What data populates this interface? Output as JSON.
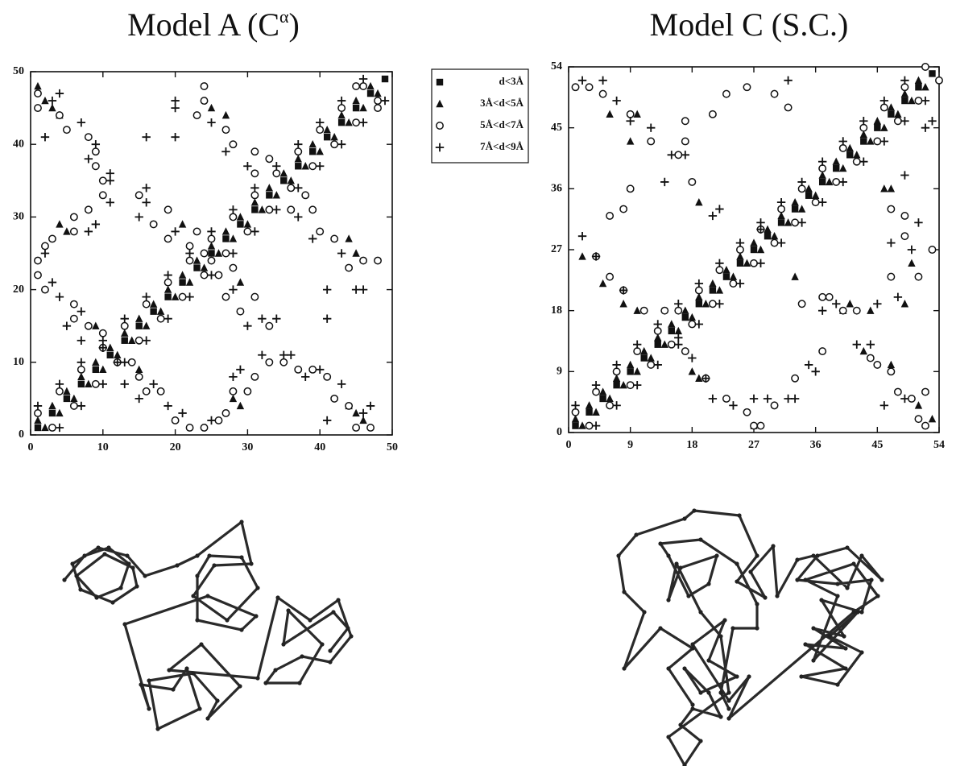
{
  "chart_data": [
    {
      "type": "scatter",
      "title": "Model A (C",
      "title_superscript": "α",
      "title_suffix": ")",
      "xlim": [
        0,
        50
      ],
      "ylim": [
        0,
        50
      ],
      "xticks": [
        0,
        10,
        20,
        30,
        40,
        50
      ],
      "yticks": [
        0,
        10,
        20,
        30,
        40,
        50
      ],
      "legend": "outside right",
      "series": [
        {
          "name": "d<3Å",
          "marker": "square",
          "color": "#111111",
          "x": [
            1,
            3,
            5,
            7,
            9,
            11,
            13,
            15,
            17,
            19,
            21,
            23,
            25,
            27,
            29,
            31,
            33,
            35,
            37,
            39,
            41,
            43,
            45,
            47,
            49
          ],
          "y": [
            1,
            3,
            5,
            7,
            9,
            11,
            13,
            15,
            17,
            19,
            21,
            23,
            25,
            27,
            29,
            31,
            33,
            35,
            37,
            39,
            41,
            43,
            45,
            47,
            49
          ]
        },
        {
          "name": "3Å<d<5Å",
          "marker": "triangle",
          "color": "#111111",
          "x": [
            1,
            3,
            5,
            7,
            9,
            11,
            13,
            15,
            17,
            19,
            21,
            23,
            25,
            27,
            29,
            31,
            33,
            35,
            37,
            39,
            41,
            43,
            45,
            47,
            2,
            4,
            6,
            8,
            10,
            12,
            14,
            16,
            18,
            20,
            22,
            24,
            26,
            28,
            30,
            32,
            34,
            36,
            38,
            40,
            42,
            44,
            46,
            48,
            15,
            28,
            29,
            44,
            45,
            46,
            45,
            44,
            29,
            9,
            5,
            4,
            4,
            3,
            2,
            25,
            27,
            21,
            1
          ],
          "y": [
            2,
            4,
            6,
            8,
            10,
            12,
            14,
            16,
            18,
            20,
            22,
            24,
            26,
            28,
            30,
            32,
            34,
            36,
            38,
            40,
            42,
            44,
            46,
            48,
            1,
            3,
            5,
            7,
            9,
            11,
            13,
            15,
            17,
            19,
            21,
            23,
            25,
            27,
            29,
            31,
            33,
            35,
            37,
            39,
            41,
            43,
            45,
            47,
            9,
            5,
            4,
            4,
            3,
            2,
            25,
            27,
            21,
            15,
            28,
            29,
            44,
            45,
            46,
            45,
            44,
            29,
            48
          ]
        },
        {
          "name": "5Å<d<7Å",
          "marker": "circle",
          "color": "#111111",
          "x": [
            1,
            4,
            7,
            10,
            13,
            16,
            19,
            22,
            25,
            28,
            31,
            34,
            37,
            40,
            43,
            46,
            3,
            6,
            9,
            12,
            15,
            18,
            21,
            24,
            27,
            30,
            33,
            36,
            39,
            42,
            45,
            48,
            14,
            15,
            16,
            18,
            20,
            22,
            24,
            26,
            27,
            28,
            30,
            31,
            33,
            35,
            37,
            39,
            41,
            42,
            44,
            45,
            47,
            23,
            25,
            26,
            27,
            29,
            31,
            33,
            36,
            38,
            39,
            40,
            42,
            44,
            46,
            48,
            48,
            10,
            8,
            6,
            6,
            2,
            1,
            1,
            2,
            3,
            6,
            6,
            8,
            10,
            10,
            9,
            9,
            8,
            5,
            4,
            1,
            1,
            28,
            24,
            22,
            19,
            17,
            19,
            15,
            31,
            33,
            31,
            28,
            27,
            23,
            24,
            24,
            45
          ],
          "y": [
            3,
            6,
            9,
            12,
            15,
            18,
            21,
            24,
            27,
            30,
            33,
            36,
            39,
            42,
            45,
            48,
            1,
            4,
            7,
            10,
            13,
            16,
            19,
            22,
            25,
            28,
            31,
            34,
            37,
            40,
            43,
            46,
            10,
            8,
            6,
            6,
            2,
            1,
            1,
            2,
            3,
            6,
            6,
            8,
            10,
            10,
            9,
            9,
            8,
            5,
            4,
            1,
            1,
            28,
            24,
            22,
            19,
            17,
            19,
            15,
            31,
            33,
            31,
            28,
            27,
            23,
            24,
            24,
            45,
            14,
            15,
            16,
            18,
            20,
            22,
            24,
            26,
            27,
            28,
            30,
            31,
            33,
            35,
            37,
            39,
            41,
            42,
            44,
            45,
            47,
            23,
            25,
            26,
            27,
            29,
            31,
            33,
            36,
            38,
            39,
            40,
            42,
            44,
            46,
            48,
            48
          ]
        },
        {
          "name": "7Å<d<9Å",
          "marker": "plus",
          "color": "#111111",
          "x": [
            1,
            4,
            7,
            10,
            13,
            16,
            19,
            22,
            25,
            28,
            31,
            34,
            37,
            40,
            43,
            46,
            4,
            7,
            10,
            13,
            16,
            19,
            22,
            25,
            28,
            31,
            34,
            37,
            40,
            43,
            46,
            49,
            12,
            13,
            15,
            17,
            19,
            21,
            25,
            28,
            29,
            32,
            36,
            38,
            40,
            41,
            43,
            46,
            47,
            28,
            30,
            32,
            34,
            35,
            37,
            39,
            41,
            41,
            45,
            46,
            43,
            10,
            7,
            5,
            7,
            4,
            3,
            2,
            8,
            9,
            11,
            11,
            8,
            9,
            2,
            7,
            3,
            4,
            20,
            15,
            16,
            16,
            11,
            30,
            27,
            20,
            16,
            20,
            20,
            25
          ],
          "y": [
            4,
            7,
            10,
            13,
            16,
            19,
            22,
            25,
            28,
            31,
            34,
            37,
            40,
            43,
            46,
            49,
            1,
            4,
            7,
            10,
            13,
            16,
            19,
            22,
            25,
            28,
            31,
            34,
            37,
            40,
            43,
            46,
            10,
            7,
            5,
            7,
            4,
            3,
            2,
            8,
            9,
            11,
            11,
            8,
            9,
            2,
            7,
            3,
            4,
            20,
            15,
            16,
            16,
            11,
            30,
            27,
            20,
            16,
            20,
            20,
            25,
            12,
            13,
            15,
            17,
            19,
            21,
            25,
            28,
            29,
            32,
            36,
            38,
            40,
            41,
            43,
            46,
            47,
            28,
            30,
            32,
            34,
            35,
            37,
            39,
            41,
            41,
            45,
            46,
            43
          ]
        }
      ]
    },
    {
      "type": "scatter",
      "title": "Model C (S.C.)",
      "xlim": [
        0,
        54
      ],
      "ylim": [
        0,
        54
      ],
      "xticks": [
        0,
        9,
        18,
        27,
        36,
        45,
        54
      ],
      "yticks": [
        0,
        9,
        18,
        27,
        36,
        45,
        54
      ],
      "series": [
        {
          "marker": "square",
          "color": "#111111",
          "x": [
            1,
            3,
            5,
            7,
            9,
            11,
            13,
            15,
            17,
            19,
            21,
            23,
            25,
            27,
            29,
            31,
            33,
            35,
            37,
            39,
            41,
            43,
            45,
            47,
            49,
            51,
            53
          ],
          "y": [
            1,
            3,
            5,
            7,
            9,
            11,
            13,
            15,
            17,
            19,
            21,
            23,
            25,
            27,
            29,
            31,
            33,
            35,
            37,
            39,
            41,
            43,
            45,
            47,
            49,
            51,
            53
          ]
        },
        {
          "marker": "triangle",
          "color": "#111111",
          "x": [
            1,
            3,
            5,
            7,
            9,
            11,
            13,
            15,
            17,
            19,
            21,
            23,
            25,
            27,
            29,
            31,
            33,
            35,
            37,
            39,
            41,
            43,
            45,
            47,
            49,
            51,
            2,
            4,
            6,
            8,
            10,
            12,
            14,
            16,
            18,
            20,
            22,
            24,
            26,
            28,
            30,
            32,
            34,
            36,
            38,
            40,
            42,
            44,
            46,
            48,
            50,
            52,
            18,
            19,
            27,
            33,
            40,
            41,
            44,
            46,
            47,
            49,
            50,
            51,
            53,
            43,
            47,
            2,
            5,
            8,
            10,
            9,
            10,
            6,
            19
          ],
          "y": [
            2,
            4,
            6,
            8,
            10,
            12,
            14,
            16,
            18,
            20,
            22,
            24,
            26,
            28,
            30,
            32,
            34,
            36,
            38,
            40,
            42,
            44,
            46,
            48,
            50,
            52,
            1,
            3,
            5,
            7,
            9,
            11,
            13,
            15,
            17,
            19,
            21,
            23,
            25,
            27,
            29,
            31,
            33,
            35,
            37,
            39,
            41,
            43,
            45,
            47,
            49,
            51,
            9,
            8,
            1,
            23,
            18,
            19,
            18,
            36,
            36,
            19,
            25,
            4,
            2,
            12,
            10,
            26,
            22,
            19,
            18,
            43,
            47,
            47,
            34
          ]
        },
        {
          "marker": "circle",
          "color": "#111111",
          "x": [
            1,
            4,
            7,
            10,
            13,
            16,
            19,
            22,
            25,
            28,
            31,
            34,
            37,
            40,
            43,
            46,
            49,
            52,
            3,
            6,
            9,
            12,
            15,
            18,
            21,
            24,
            27,
            30,
            33,
            36,
            39,
            42,
            45,
            48,
            51,
            54,
            17,
            20,
            23,
            26,
            27,
            28,
            30,
            33,
            34,
            37,
            37,
            38,
            40,
            42,
            44,
            45,
            47,
            48,
            50,
            51,
            52,
            47,
            47,
            49,
            49,
            51,
            53,
            52,
            6,
            8,
            9,
            17,
            17,
            21,
            23,
            26,
            30,
            32,
            1,
            3,
            5,
            9,
            12,
            16,
            18,
            4,
            6,
            8,
            11,
            14
          ],
          "y": [
            3,
            6,
            9,
            12,
            15,
            18,
            21,
            24,
            27,
            30,
            33,
            36,
            39,
            42,
            45,
            48,
            51,
            54,
            1,
            4,
            7,
            10,
            13,
            16,
            19,
            22,
            25,
            28,
            31,
            34,
            37,
            40,
            43,
            46,
            49,
            52,
            12,
            8,
            5,
            3,
            1,
            1,
            4,
            8,
            19,
            20,
            12,
            20,
            18,
            18,
            11,
            10,
            9,
            6,
            5,
            2,
            6,
            23,
            33,
            29,
            32,
            23,
            27,
            1,
            32,
            33,
            36,
            43,
            46,
            47,
            50,
            51,
            50,
            48,
            51,
            51,
            50,
            47,
            43,
            41,
            37,
            26,
            23,
            21,
            18,
            18
          ]
        },
        {
          "marker": "plus",
          "color": "#111111",
          "x": [
            1,
            4,
            7,
            10,
            13,
            16,
            19,
            22,
            25,
            28,
            31,
            34,
            37,
            40,
            43,
            46,
            49,
            4,
            7,
            10,
            13,
            16,
            19,
            22,
            25,
            28,
            31,
            34,
            37,
            40,
            43,
            46,
            49,
            52,
            16,
            18,
            20,
            21,
            24,
            27,
            29,
            32,
            33,
            35,
            36,
            37,
            39,
            42,
            44,
            46,
            49,
            45,
            48,
            47,
            50,
            51,
            49,
            52,
            53,
            2,
            5,
            7,
            9,
            12,
            15,
            17,
            14,
            21,
            22,
            28,
            32,
            4,
            2,
            8
          ],
          "y": [
            4,
            7,
            10,
            13,
            16,
            19,
            22,
            25,
            28,
            31,
            34,
            37,
            40,
            43,
            46,
            49,
            52,
            1,
            4,
            7,
            10,
            13,
            16,
            19,
            22,
            25,
            28,
            31,
            34,
            37,
            40,
            43,
            46,
            49,
            14,
            11,
            8,
            5,
            4,
            5,
            5,
            5,
            5,
            10,
            9,
            18,
            19,
            13,
            13,
            4,
            5,
            19,
            20,
            28,
            27,
            31,
            38,
            45,
            46,
            52,
            52,
            49,
            46,
            45,
            41,
            41,
            37,
            32,
            33,
            30,
            52,
            26,
            29,
            21
          ]
        }
      ]
    }
  ]
}
